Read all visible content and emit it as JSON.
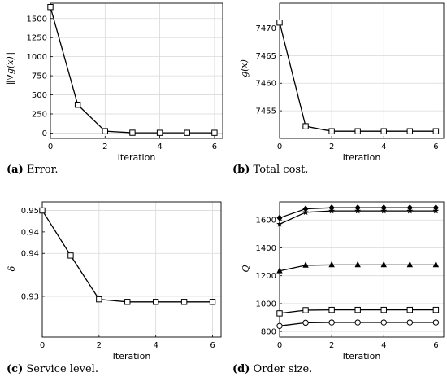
{
  "chart_data": [
    {
      "id": "a",
      "type": "line",
      "x": [
        0,
        1,
        2,
        3,
        4,
        5,
        6
      ],
      "series": [
        {
          "values": [
            1650,
            370,
            25,
            4,
            3,
            3,
            3
          ],
          "marker": "square"
        }
      ],
      "xlabel": "Iteration",
      "ylabel": "‖∇g(x)‖",
      "xlim": [
        0,
        6.3
      ],
      "ylim": [
        -70,
        1700
      ],
      "xticks": [
        0,
        2,
        4,
        6
      ],
      "yticks": [
        0,
        250,
        500,
        750,
        1000,
        1250,
        1500
      ],
      "grid": true,
      "caption_tag": "(a)",
      "caption_text": "Error."
    },
    {
      "id": "b",
      "type": "line",
      "x": [
        0,
        1,
        2,
        3,
        4,
        5,
        6
      ],
      "series": [
        {
          "values": [
            7471,
            7452.2,
            7451.3,
            7451.3,
            7451.3,
            7451.3,
            7451.3
          ],
          "marker": "square"
        }
      ],
      "xlabel": "Iteration",
      "ylabel": "g(x)",
      "xlim": [
        0,
        6.3
      ],
      "ylim": [
        7450,
        7474.5
      ],
      "xticks": [
        0,
        2,
        4,
        6
      ],
      "yticks": [
        7455,
        7460,
        7465,
        7470
      ],
      "grid": true,
      "caption_tag": "(b)",
      "caption_text": "Total cost."
    },
    {
      "id": "c",
      "type": "line",
      "x": [
        0,
        1,
        2,
        3,
        4,
        5,
        6
      ],
      "series": [
        {
          "values": [
            0.95,
            0.9395,
            0.9293,
            0.9287,
            0.9287,
            0.9287,
            0.9287
          ],
          "marker": "square"
        }
      ],
      "xlabel": "Iteration",
      "ylabel": "δ",
      "xlim": [
        0,
        6.3
      ],
      "ylim": [
        0.9205,
        0.952
      ],
      "xticks": [
        0,
        2,
        4,
        6
      ],
      "yticks": [
        0.93,
        0.94,
        0.95
      ],
      "ytick_labels": [
        "0.93",
        "0.94",
        "0.95"
      ],
      "extra_yticks": [
        {
          "value": 0.945,
          "label": "0.94"
        }
      ],
      "grid": true,
      "caption_tag": "(c)",
      "caption_text": "Service level."
    },
    {
      "id": "d",
      "type": "line",
      "x": [
        0,
        1,
        2,
        3,
        4,
        5,
        6
      ],
      "series": [
        {
          "values": [
            1615,
            1680,
            1688,
            1688,
            1688,
            1688,
            1688
          ],
          "marker": "diamond"
        },
        {
          "values": [
            1570,
            1655,
            1665,
            1665,
            1665,
            1665,
            1665
          ],
          "marker": "star"
        },
        {
          "values": [
            1235,
            1275,
            1278,
            1278,
            1278,
            1278,
            1278
          ],
          "marker": "triangle"
        },
        {
          "values": [
            930,
            953,
            955,
            955,
            955,
            955,
            955
          ],
          "marker": "square"
        },
        {
          "values": [
            840,
            863,
            865,
            865,
            865,
            865,
            865
          ],
          "marker": "circle"
        }
      ],
      "xlabel": "Iteration",
      "ylabel": "Q",
      "xlim": [
        0,
        6.3
      ],
      "ylim": [
        760,
        1730
      ],
      "xticks": [
        0,
        2,
        4,
        6
      ],
      "yticks": [
        800,
        1000,
        1200,
        1400,
        1600
      ],
      "grid": true,
      "caption_tag": "(d)",
      "caption_text": "Order size."
    }
  ]
}
